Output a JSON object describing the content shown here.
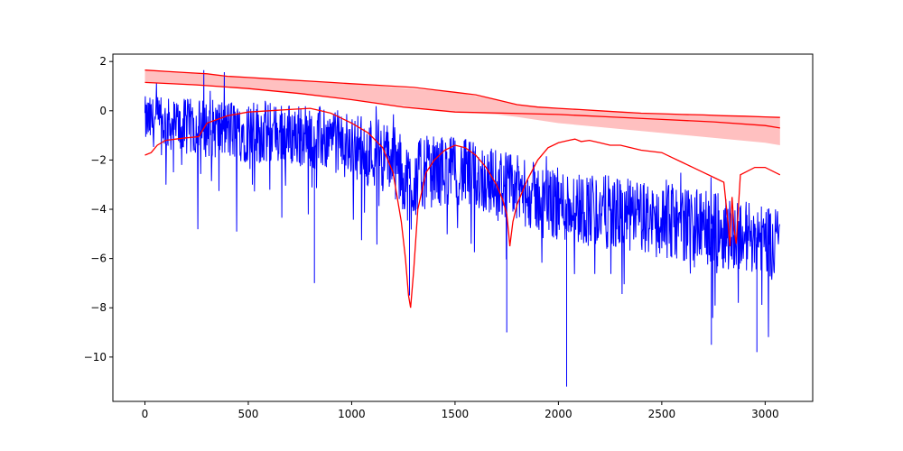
{
  "chart_data": {
    "type": "line",
    "title": "",
    "xlabel": "",
    "ylabel": "",
    "xlim": [
      -155,
      3230
    ],
    "ylim": [
      -11.8,
      2.3
    ],
    "x_ticks": [
      0,
      500,
      1000,
      1500,
      2000,
      2500,
      3000
    ],
    "y_ticks": [
      2,
      0,
      -2,
      -4,
      -6,
      -8,
      -10
    ],
    "x_tick_labels": [
      "0",
      "500",
      "1000",
      "1500",
      "2000",
      "2500",
      "3000"
    ],
    "y_tick_labels": [
      "2",
      "0",
      "−2",
      "−4",
      "−6",
      "−8",
      "−10"
    ],
    "grid": false,
    "legend": "none",
    "colors": {
      "signal": "#0000ff",
      "envelope": "#ff0000",
      "band_fill": "#ffc0c0"
    },
    "n_samples": 3072,
    "series": [
      {
        "role": "noisy-signal",
        "color": "#0000ff",
        "x": [
          0,
          150,
          300,
          450,
          600,
          750,
          900,
          1050,
          1200,
          1280,
          1350,
          1500,
          1650,
          1750,
          1850,
          2000,
          2150,
          2300,
          2450,
          2600,
          2750,
          2850,
          3000,
          3072
        ],
        "center": [
          -0.4,
          -0.6,
          -0.7,
          -0.8,
          -0.9,
          -1.0,
          -1.2,
          -1.5,
          -2.0,
          -3.0,
          -2.5,
          -2.4,
          -2.8,
          -3.0,
          -3.4,
          -3.8,
          -4.0,
          -4.2,
          -4.4,
          -4.6,
          -4.8,
          -5.0,
          -5.2,
          -5.3
        ],
        "spread": [
          1.0,
          1.1,
          1.2,
          1.3,
          1.3,
          1.3,
          1.3,
          1.4,
          1.5,
          1.6,
          1.5,
          1.4,
          1.4,
          1.4,
          1.4,
          1.5,
          1.5,
          1.5,
          1.5,
          1.5,
          1.5,
          1.5,
          1.5,
          1.5
        ],
        "max_value": 1.65,
        "min_value": -11.2
      },
      {
        "role": "upper-envelope",
        "color": "#ff0000",
        "x": [
          0,
          100,
          200,
          300,
          400,
          500,
          600,
          700,
          800,
          900,
          1000,
          1100,
          1200,
          1300,
          1400,
          1500,
          1600,
          1700,
          1800,
          1900,
          2000,
          2100,
          2200,
          2300,
          2400,
          2500,
          2600,
          2700,
          2800,
          2900,
          3000,
          3072
        ],
        "y": [
          1.65,
          1.6,
          1.55,
          1.5,
          1.4,
          1.35,
          1.3,
          1.25,
          1.2,
          1.15,
          1.1,
          1.05,
          1.0,
          0.95,
          0.85,
          0.75,
          0.65,
          0.45,
          0.25,
          0.15,
          0.1,
          0.05,
          0.0,
          -0.05,
          -0.1,
          -0.12,
          -0.15,
          -0.17,
          -0.2,
          -0.22,
          -0.25,
          -0.27
        ]
      },
      {
        "role": "center-line",
        "color": "#ff0000",
        "x": [
          0,
          250,
          500,
          750,
          1000,
          1250,
          1500,
          1750,
          2000,
          2250,
          2500,
          2750,
          3000,
          3072
        ],
        "y": [
          1.15,
          1.05,
          0.9,
          0.7,
          0.45,
          0.15,
          -0.05,
          -0.1,
          -0.15,
          -0.25,
          -0.35,
          -0.45,
          -0.6,
          -0.7
        ]
      },
      {
        "role": "lower-envelope",
        "color": "#ff0000",
        "x": [
          0,
          30,
          60,
          100,
          150,
          200,
          260,
          300,
          400,
          500,
          600,
          700,
          800,
          850,
          900,
          1000,
          1080,
          1150,
          1200,
          1240,
          1260,
          1275,
          1285,
          1300,
          1320,
          1360,
          1400,
          1450,
          1500,
          1550,
          1600,
          1650,
          1700,
          1730,
          1750,
          1760,
          1765,
          1780,
          1800,
          1850,
          1900,
          1950,
          2000,
          2050,
          2080,
          2110,
          2150,
          2200,
          2250,
          2300,
          2350,
          2400,
          2450,
          2500,
          2550,
          2600,
          2650,
          2700,
          2750,
          2800,
          2820,
          2830,
          2840,
          2850,
          2860,
          2880,
          2950,
          3000,
          3072
        ],
        "y": [
          -1.8,
          -1.7,
          -1.4,
          -1.2,
          -1.15,
          -1.1,
          -1.05,
          -0.5,
          -0.2,
          -0.05,
          0.0,
          0.05,
          0.1,
          0.0,
          -0.1,
          -0.5,
          -0.9,
          -1.5,
          -2.5,
          -4.5,
          -6.0,
          -7.5,
          -8.0,
          -6.5,
          -4.0,
          -2.5,
          -2.0,
          -1.6,
          -1.4,
          -1.5,
          -1.8,
          -2.3,
          -3.0,
          -3.6,
          -4.2,
          -5.0,
          -5.5,
          -4.5,
          -3.8,
          -2.8,
          -2.0,
          -1.5,
          -1.3,
          -1.2,
          -1.15,
          -1.25,
          -1.2,
          -1.3,
          -1.4,
          -1.4,
          -1.5,
          -1.6,
          -1.65,
          -1.7,
          -1.9,
          -2.1,
          -2.3,
          -2.5,
          -2.7,
          -2.9,
          -4.5,
          -5.5,
          -3.5,
          -4.8,
          -5.4,
          -2.6,
          -2.3,
          -2.3,
          -2.6
        ]
      }
    ],
    "shaded_band": {
      "color": "#ffc0c0",
      "x": [
        0,
        500,
        1000,
        1500,
        1700,
        1800,
        2000,
        2500,
        3000,
        3072
      ],
      "upper": [
        1.65,
        1.35,
        1.1,
        0.75,
        0.45,
        0.25,
        0.1,
        -0.12,
        -0.25,
        -0.27
      ],
      "lower": [
        1.15,
        0.9,
        0.45,
        -0.05,
        -0.15,
        -0.25,
        -0.5,
        -0.9,
        -1.3,
        -1.4
      ]
    }
  }
}
